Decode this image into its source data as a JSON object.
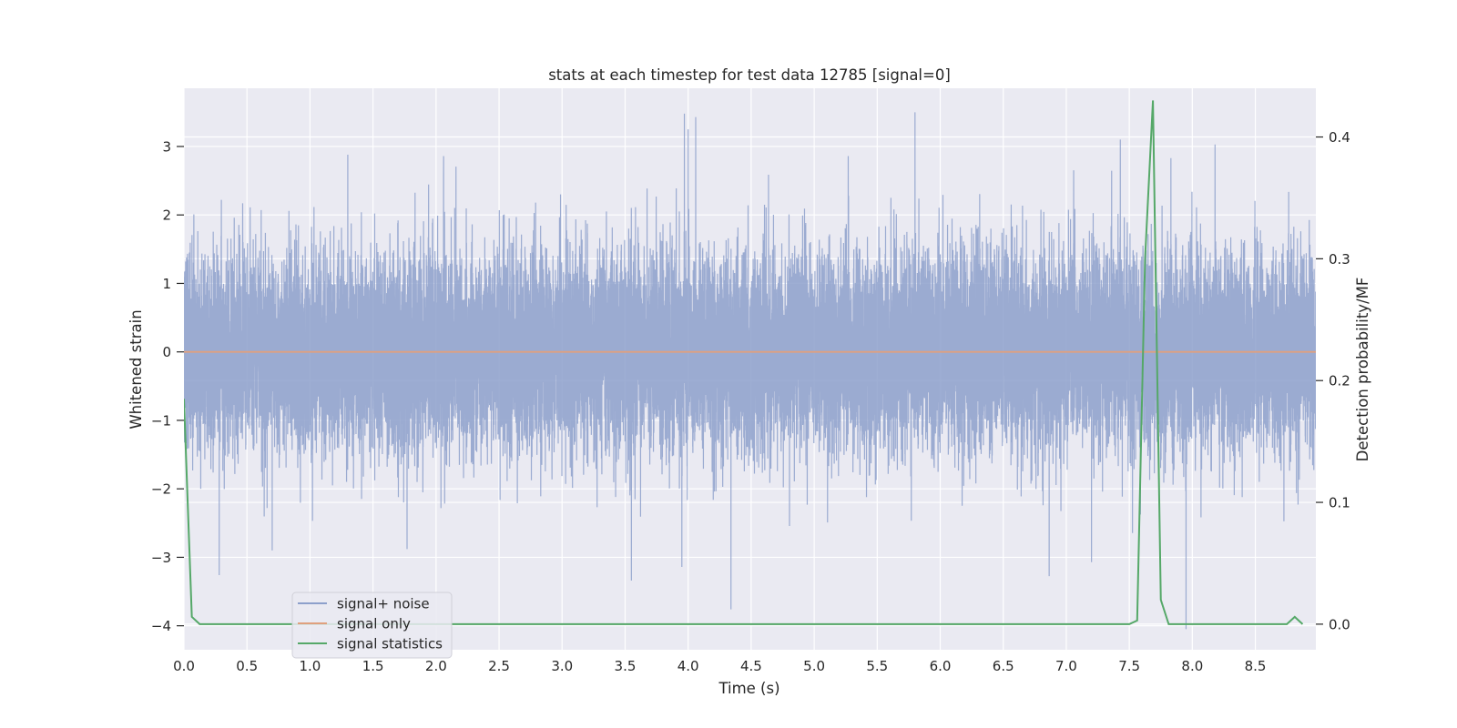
{
  "chart_data": {
    "type": "line",
    "title": "stats at each timestep for test data 12785 [signal=0]",
    "xlabel": "Time (s)",
    "ylabel": "Whitened strain",
    "y2label": "Detection probability/MF",
    "xlim": [
      0.0,
      8.98
    ],
    "ylim": [
      -4.35,
      3.85
    ],
    "y2lim": [
      -0.021,
      0.44
    ],
    "x_ticks": [
      "0.0",
      "0.5",
      "1.0",
      "1.5",
      "2.0",
      "2.5",
      "3.0",
      "3.5",
      "4.0",
      "4.5",
      "5.0",
      "5.5",
      "6.0",
      "6.5",
      "7.0",
      "7.5",
      "8.0",
      "8.5"
    ],
    "y_ticks": [
      "−4",
      "−3",
      "−2",
      "−1",
      "0",
      "1",
      "2",
      "3"
    ],
    "y2_ticks": [
      "0.0",
      "0.1",
      "0.2",
      "0.3",
      "0.4"
    ],
    "grid": true,
    "legend_position": "lower left",
    "series": [
      {
        "name": "signal+ noise",
        "color": "#8da0cb",
        "axis": "left",
        "sample_rate": 2048,
        "noise_std": 0.72,
        "spikes": [
          {
            "x": 3.97,
            "y": 3.48
          },
          {
            "x": 4.0,
            "y": 3.25
          },
          {
            "x": 4.06,
            "y": 3.43
          },
          {
            "x": 5.8,
            "y": 3.5
          },
          {
            "x": 8.18,
            "y": 3.03
          },
          {
            "x": 1.3,
            "y": 2.88
          },
          {
            "x": 2.06,
            "y": 2.86
          },
          {
            "x": 5.27,
            "y": 2.86
          },
          {
            "x": 7.83,
            "y": 2.83
          },
          {
            "x": 4.34,
            "y": -3.76
          },
          {
            "x": 3.55,
            "y": -3.34
          },
          {
            "x": 0.28,
            "y": -3.26
          },
          {
            "x": 3.95,
            "y": -3.14
          },
          {
            "x": 7.2,
            "y": -3.07
          },
          {
            "x": 7.95,
            "y": -4.05
          },
          {
            "x": 1.77,
            "y": -2.88
          },
          {
            "x": 0.7,
            "y": -2.9
          }
        ]
      },
      {
        "name": "signal only",
        "color": "#e0a07e",
        "axis": "left",
        "x": [
          0.0,
          8.98
        ],
        "y": [
          0.0,
          0.0
        ]
      },
      {
        "name": "signal statistics",
        "color": "#55a868",
        "axis": "right",
        "x": [
          0.0,
          0.0625,
          0.125,
          0.1875,
          0.25,
          7.5,
          7.5625,
          7.625,
          7.6875,
          7.75,
          7.8125,
          7.875,
          8.75,
          8.8125,
          8.875
        ],
        "y": [
          0.185,
          0.006,
          0.0,
          0.0,
          0.0,
          0.0,
          0.003,
          0.3,
          0.43,
          0.02,
          0.0,
          0.0,
          0.0,
          0.006,
          0.0
        ]
      }
    ]
  }
}
